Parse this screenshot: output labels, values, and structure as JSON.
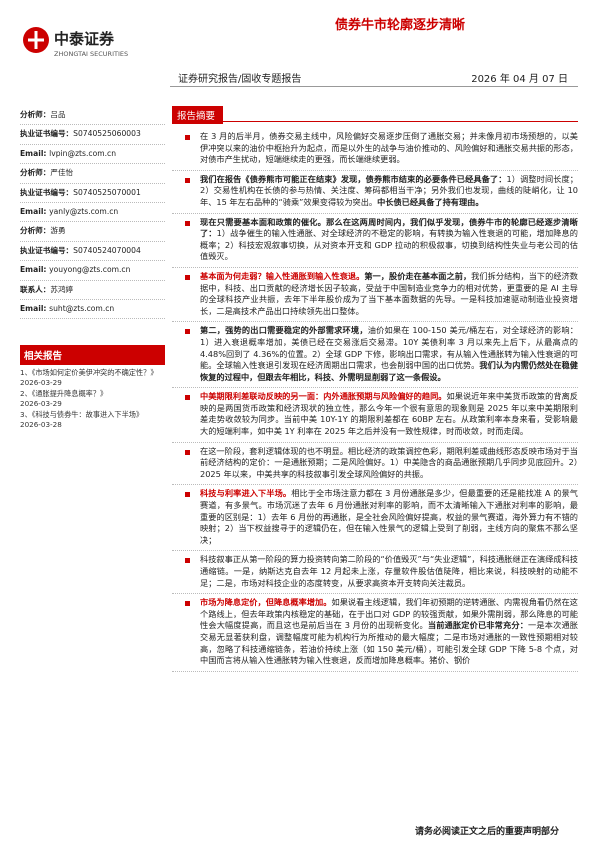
{
  "header": {
    "logo_cn": "中泰证券",
    "logo_en": "ZHONGTAI SECURITIES",
    "title": "债券牛市轮廓逐步清晰",
    "report_type": "证券研究报告/固收专题报告",
    "date": "2026 年 04 月 07 日"
  },
  "sidebar": {
    "contacts": [
      {
        "label": "分析师：",
        "value": "吕品"
      },
      {
        "label": "执业证书编号：",
        "value": "S0740525060003"
      },
      {
        "label": "Email: ",
        "value": "lvpin@zts.com.cn"
      },
      {
        "label": "分析师：",
        "value": "严佳怡"
      },
      {
        "label": "执业证书编号：",
        "value": "S0740525070001"
      },
      {
        "label": "Email: ",
        "value": "yanly@zts.com.cn"
      },
      {
        "label": "分析师：",
        "value": "游勇"
      },
      {
        "label": "执业证书编号：",
        "value": "S0740524070004"
      },
      {
        "label": "Email: ",
        "value": "youyong@zts.com.cn"
      },
      {
        "label": "联系人：",
        "value": "苏鸿婷"
      },
      {
        "label": "Email: ",
        "value": "suht@zts.com.cn"
      }
    ],
    "related_title": "相关报告",
    "related": [
      {
        "title": "1、《市场如何定价美伊冲突的不确定性？》",
        "date": "2026-03-29"
      },
      {
        "title": "2、《通胀提升降息概率？》",
        "date": "2026-03-29"
      },
      {
        "title": "3、《科技与债券牛：故事进入下半场》",
        "date": "2026-03-28"
      }
    ]
  },
  "summary": {
    "title": "报告摘要",
    "paragraphs": [
      [
        {
          "text": "在 3 月的后半月，债券交易主线中，风险偏好交易逐步压倒了通胀交易；并未像月初市场预想的，以美伊冲突以来的油价中枢抬升为起点，而是以外生的战争与油价推动的、风险偏好和通胀交易共振的形态，对债市产生扰动，短端继续走的更强，而长端继续更弱。"
        }
      ],
      [
        {
          "text": "我们在报告《债券熊市可能正在结束》发现，债券熊市结束的必要条件已经具备了：",
          "emphasis": "bold"
        },
        {
          "text": "1）调整时间长度；2）交易性机构在长债的参与热情、关注度、筹码都相当干净；另外我们也发现，曲线的陡峭化，让 10 年、15 年左右品种的“骑乘”效果变得较为突出。"
        },
        {
          "text": "中长债已经具备了持有理由。",
          "emphasis": "bold"
        }
      ],
      [
        {
          "text": "现在只需要基本面和政策的催化。那么在这两周时间内，我们似乎发现，债券牛市的轮廓已经逐步清晰了：",
          "emphasis": "bold"
        },
        {
          "text": "1）战争催生的输入性通胀、对全球经济的不稳定的影响，有转换为输入性衰退的可能，增加降息的概率；2）科技宏观叙事切换，从对资本开支和 GDP 拉动的积极叙事，切换到结构性失业与老公司的估值毁灭。"
        }
      ],
      [
        {
          "text": "基本面为何走弱？输入性通胀到输入性衰退。",
          "emphasis": "red"
        },
        {
          "text": "第一，股价走在基本面之前，",
          "emphasis": "bold"
        },
        {
          "text": "我们拆分结构，当下的经济数据中，科技、出口贡献的经济增长因子较高，受益于中国制造业竞争力的相对优势，更重要的是 AI 主导的全球科技产业共振，去年下半年股价成为了当下基本面数据的先导。一是科技加速驱动制造业投资增长，二是高技术产品出口持续领先出口整体。"
        }
      ],
      [
        {
          "text": "第二，强势的出口需要稳定的外部需求环境，",
          "emphasis": "bold"
        },
        {
          "text": "油价如果在 100-150 美元/桶左右，对全球经济的影响：1）进入衰退概率增加，美债已经在交易涨后交易滞。10Y 美债利率 3 月以来先上后下，从最高点的 4.48%回到了 4.36%的位置。2）全球 GDP 下修，影响出口需求，有从输入性通胀转为输入性衰退的可能。全球输入性衰退引发现在经济周期出口需求，也会削弱中国的出口优势。"
        },
        {
          "text": "我们认为内需仍然处在稳健恢复的过程中，但跟去年相比，科技、外需明显削弱了这一条假设。",
          "emphasis": "bold"
        }
      ],
      [
        {
          "text": "中美期限利差联动反映的另一面：内外通胀预期与风险偏好的趋同。",
          "emphasis": "red"
        },
        {
          "text": "如果说近年来中美货币政策的背离反映的是两国货币政策和经济现状的独立性，那么今年一个很有意思的现象则是 2025 年以来中美期限利差走势收敛较为同步。当前中美 10Y-1Y 的期限利差都在 60BP 左右。从政策利率本身来看，受影响最大的短端利率，如中美 1Y 利率在 2025 年之后并没有一致性规律，时而收敛，时而走阔。"
        }
      ],
      [
        {
          "text": "在这一阶段，套利逻辑体现的也不明显。相比经济的政策调控色彩，期限利差或曲线形态反映市场对于当前经济结构的定价：一是通胀预期；二是风险偏好。1）中美隐含的商品通胀预期几乎同步见底回升。2）2025 年以来，中美共享的科技叙事引发全球风险偏好的共振。"
        }
      ],
      [
        {
          "text": "科技与利率进入下半场。",
          "emphasis": "red"
        },
        {
          "text": "相比于全市场注意力都在 3 月份通胀是多少，但最重要的还是能找准 A 的景气赛道，有多景气。市场沉迷了去年 6 月份通胀对利率的影响，而不太清晰输入下通胀对利率的影响，最重要的区别是：1）去年 6 月份的再通胀，是全社会风险偏好提高，权益的景气赛道，海外算力有不错的映射；2）当下权益搜寻于的逻辑仍在，但在输入性景气的逻辑上受到了削弱，主线方向的聚焦不那么坚决；"
        }
      ],
      [
        {
          "text": "科技叙事正从第一阶段的算力投资转向第二阶段的“价值毁灭”与“失业逻辑”，科技通胀继正在演绎成科技通缩链。一是，纳斯达克自去年 12 月起未上涨，存量软件股估值陡降，相比来说，科技映射的动能不足；二是，市场对科技企业的态度转变，从要求高资本开支转向关注裁员。"
        }
      ],
      [
        {
          "text": "市场为降息定价，但降息概率增加。",
          "emphasis": "red"
        },
        {
          "text": "如果说看主线逻辑，我们年初预期的逆转通胀、内需视角看仍然在这个路线上，但去年政策内核稳定的基础，在于出口对 GDP 的较强贡献，如果外需削弱，那么降息的可能性会大幅度提高，而且这也是前后当在 3 月份的出现新变化。"
        },
        {
          "text": "当前通胀定价已非常充分：",
          "emphasis": "bold"
        },
        {
          "text": "一是本次通胀交易无显著获利盘，调整幅度可能为机构行为所推动的最大幅度；二是市场对通胀的一致性预期相对较高，忽略了科技通缩链条，若油价持续上涨（如 150 美元/桶），可能引发全球 GDP 下降 5-8 个点，对中国而言将从输入性通胀转为输入性衰退，反而增加降息概率。猪价、钢价"
        }
      ]
    ]
  },
  "footer": {
    "note": "请务必阅读正文之后的重要声明部分"
  }
}
